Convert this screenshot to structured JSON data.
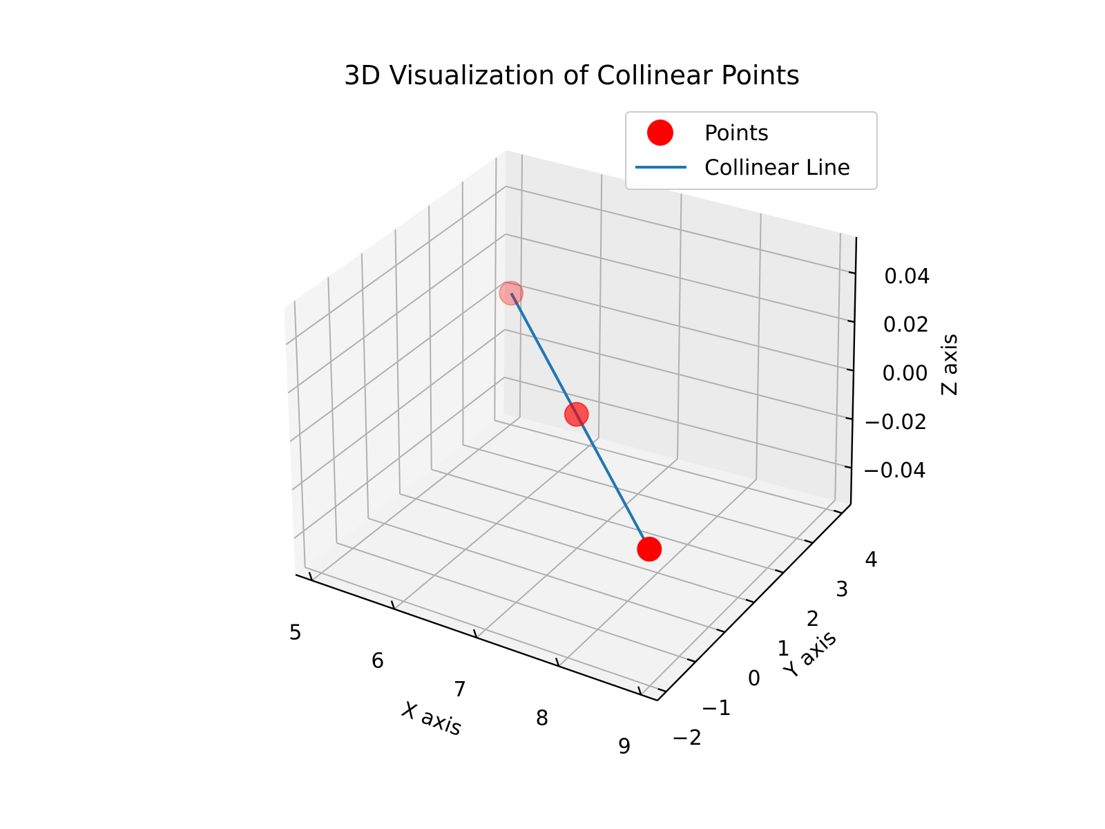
{
  "chart_data": {
    "type": "scatter",
    "projection": "3d",
    "title": "3D Visualization of Collinear Points",
    "xlabel": "X axis",
    "ylabel": "Y axis",
    "zlabel": "Z axis",
    "xlim": [
      4.8,
      9.2
    ],
    "ylim": [
      -2.3,
      4.3
    ],
    "zlim": [
      -0.055,
      0.055
    ],
    "x_ticks": [
      5,
      6,
      7,
      8,
      9
    ],
    "x_tick_labels": [
      "5",
      "6",
      "7",
      "8",
      "9"
    ],
    "y_ticks": [
      -2,
      -1,
      0,
      1,
      2,
      3,
      4
    ],
    "y_tick_labels": [
      "−2",
      "−1",
      "0",
      "1",
      "2",
      "3",
      "4"
    ],
    "z_ticks": [
      -0.04,
      -0.02,
      0.0,
      0.02,
      0.04
    ],
    "z_tick_labels": [
      "−0.04",
      "−0.02",
      "0.00",
      "0.02",
      "0.04"
    ],
    "grid": true,
    "legend": {
      "position": "top-right",
      "entries": [
        {
          "label": "Points",
          "marker": "circle",
          "color": "#ff0000"
        },
        {
          "label": "Collinear Line",
          "marker": "line",
          "color": "#1f77b4"
        }
      ]
    },
    "series": [
      {
        "name": "Points",
        "kind": "scatter",
        "color": "#ff0000",
        "points": [
          {
            "x": 5,
            "y": 4,
            "z": 0
          },
          {
            "x": 7,
            "y": 1,
            "z": 0
          },
          {
            "x": 9,
            "y": -2,
            "z": 0
          }
        ]
      },
      {
        "name": "Collinear Line",
        "kind": "line",
        "color": "#1f77b4",
        "points": [
          {
            "x": 5,
            "y": 4,
            "z": 0
          },
          {
            "x": 9,
            "y": -2,
            "z": 0
          }
        ]
      }
    ],
    "colors": {
      "pane_floor": "#f2f2f2",
      "pane_wall_back": "#ebebeb",
      "pane_wall_side": "#f4f4f4",
      "grid": "#b0b0b0",
      "axis": "#000000"
    }
  }
}
